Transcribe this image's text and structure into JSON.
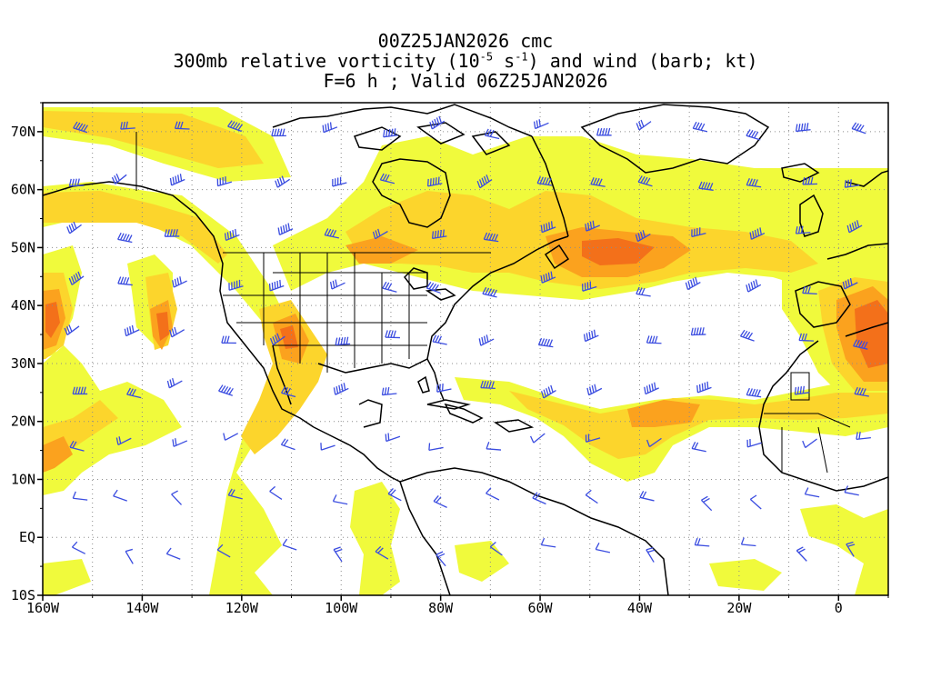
{
  "title": {
    "line1": "00Z25JAN2026 cmc",
    "line2_pre": "300mb relative vorticity (10",
    "line2_exp1": "-5",
    "line2_mid": " s",
    "line2_exp2": "-1",
    "line2_post": ") and wind (barb; kt)",
    "line3": "F=6 h ; Valid 06Z25JAN2026"
  },
  "axes": {
    "lon_ticks": [
      "160W",
      "140W",
      "120W",
      "100W",
      "80W",
      "60W",
      "40W",
      "20W",
      "0"
    ],
    "lat_ticks": [
      "70N",
      "60N",
      "50N",
      "40N",
      "30N",
      "20N",
      "10N",
      "EQ",
      "10S"
    ],
    "lon_range": [
      -160,
      10
    ],
    "lat_range": [
      -10,
      75
    ]
  },
  "colors": {
    "vort_low": "#f0fa3c",
    "vort_mid": "#fcd52c",
    "vort_high": "#fba21e",
    "vort_peak": "#f3701a",
    "barb": "#3a4ce0",
    "coast": "#000000",
    "grid": "#8c8c8c"
  },
  "grid": "dotted"
}
